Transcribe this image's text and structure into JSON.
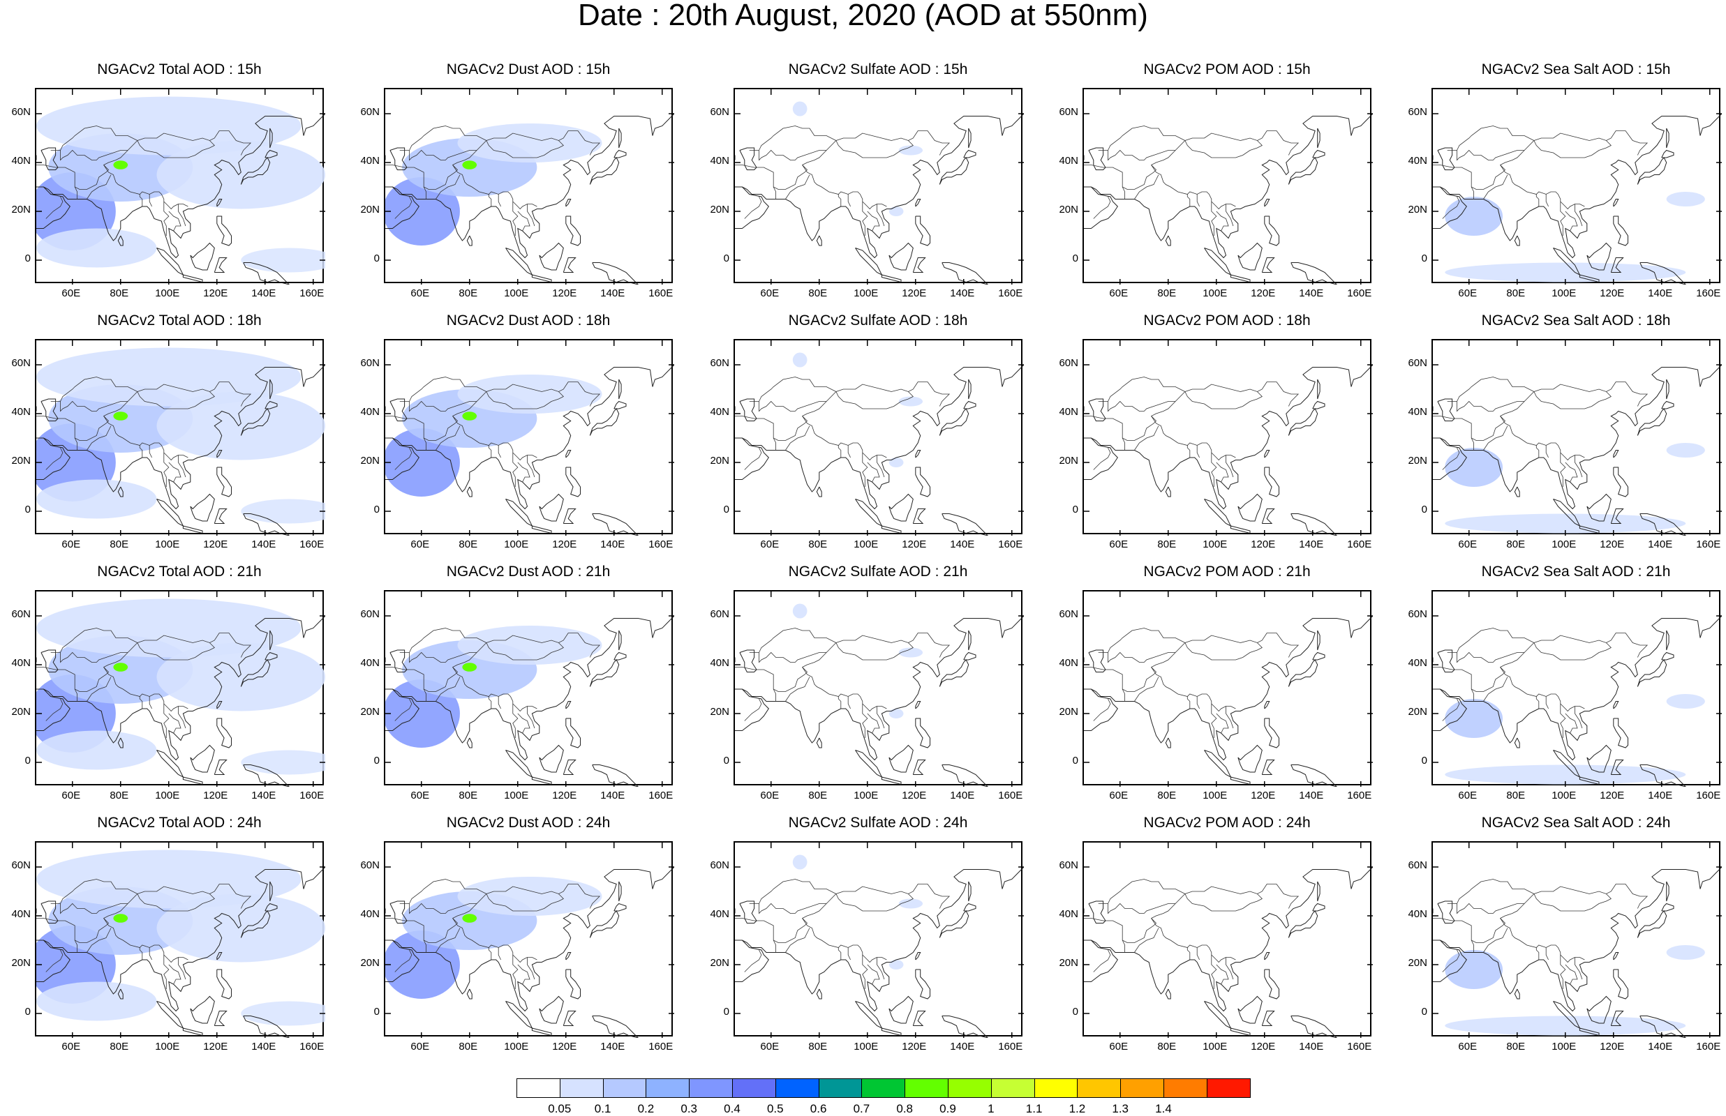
{
  "title": "Date : 20th August, 2020 (AOD at 550nm)",
  "panel_titles": [
    [
      "NGACv2 Total AOD : 15h",
      "NGACv2 Dust AOD : 15h",
      "NGACv2 Sulfate AOD : 15h",
      "NGACv2 POM AOD : 15h",
      "NGACv2 Sea Salt AOD : 15h"
    ],
    [
      "NGACv2 Total AOD : 18h",
      "NGACv2 Dust AOD : 18h",
      "NGACv2 Sulfate AOD : 18h",
      "NGACv2 POM AOD : 18h",
      "NGACv2 Sea Salt AOD : 18h"
    ],
    [
      "NGACv2 Total AOD : 21h",
      "NGACv2 Dust AOD : 21h",
      "NGACv2 Sulfate AOD : 21h",
      "NGACv2 POM AOD : 21h",
      "NGACv2 Sea Salt AOD : 21h"
    ],
    [
      "NGACv2 Total AOD : 24h",
      "NGACv2 Dust AOD : 24h",
      "NGACv2 Sulfate AOD : 24h",
      "NGACv2 POM AOD : 24h",
      "NGACv2 Sea Salt  AOD : 24h"
    ]
  ],
  "lat_labels": [
    "60N",
    "40N",
    "20N",
    "0"
  ],
  "lon_labels": [
    "60E",
    "80E",
    "100E",
    "120E",
    "140E",
    "160E"
  ],
  "colorbar": {
    "labels": [
      "0.05",
      "0.1",
      "0.2",
      "0.3",
      "0.4",
      "0.5",
      "0.6",
      "0.7",
      "0.8",
      "0.9",
      "1",
      "1.1",
      "1.2",
      "1.3",
      "1.4"
    ],
    "colors": [
      "#ffffff",
      "#d6e2ff",
      "#b5c9ff",
      "#8eb2ff",
      "#7f96ff",
      "#6370f8",
      "#0063ff",
      "#009696",
      "#00c633",
      "#63ff00",
      "#96ff00",
      "#c6ff33",
      "#ffff00",
      "#ffc600",
      "#ffa000",
      "#ff7c00",
      "#ff1900"
    ]
  }
}
